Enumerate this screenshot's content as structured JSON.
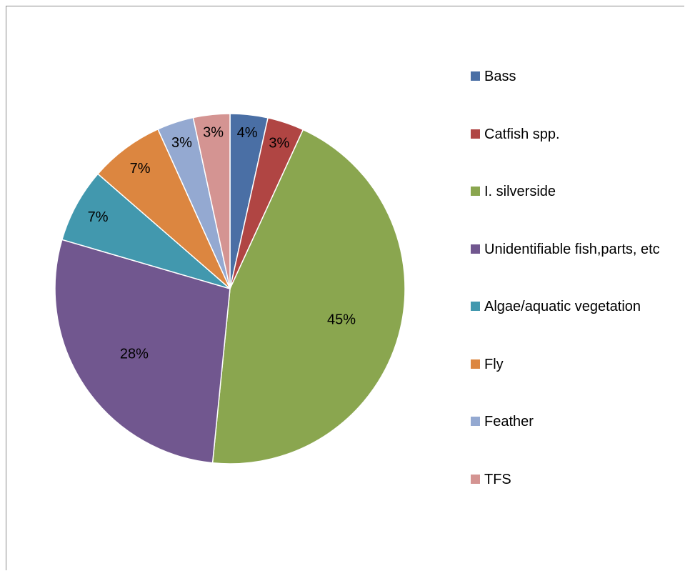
{
  "chart_data": {
    "type": "pie",
    "title": "",
    "categories": [
      "Bass",
      "Catfish spp.",
      "I. silverside",
      "Unidentifiable fish,parts, etc",
      "Algae/aquatic vegetation",
      "Fly",
      "Feather",
      "TFS"
    ],
    "values": [
      3.5,
      3.4,
      45.0,
      28.1,
      6.9,
      6.9,
      3.4,
      3.4
    ],
    "labels": [
      "4%",
      "3%",
      "45%",
      "28%",
      "7%",
      "7%",
      "3%",
      "3%"
    ],
    "colors": [
      "#4a6fa5",
      "#b04543",
      "#8aa64f",
      "#71578f",
      "#4298ae",
      "#dc8640",
      "#94a9d1",
      "#d49492"
    ],
    "start_angle_deg": 0,
    "direction": "clockwise",
    "legend_position": "right"
  }
}
